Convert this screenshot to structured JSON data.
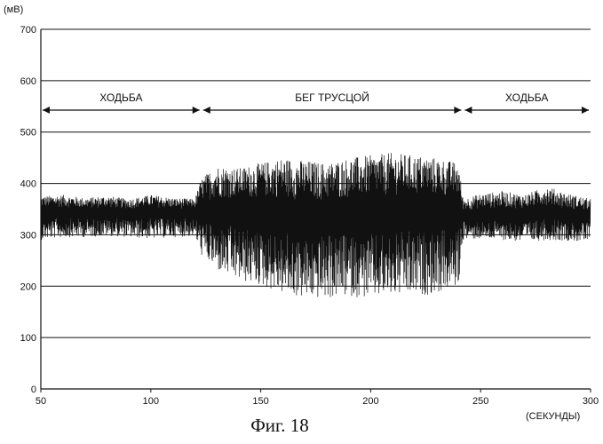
{
  "figure": {
    "caption": "Фиг. 18"
  },
  "chart_data": {
    "type": "line",
    "title": "",
    "ylabel": "(мВ)",
    "xlabel": "(СЕКУНДЫ)",
    "xlim": [
      50,
      300
    ],
    "ylim": [
      0,
      700
    ],
    "x_ticks": [
      50,
      100,
      150,
      200,
      250,
      300
    ],
    "y_ticks": [
      0,
      100,
      200,
      300,
      400,
      500,
      600,
      700
    ],
    "grid": true,
    "legend": "none",
    "series_color": "#111111",
    "phases": [
      {
        "label": "ХОДЬБА",
        "start": 50,
        "end": 123
      },
      {
        "label": "БЕГ ТРУСЦОЙ",
        "start": 123,
        "end": 242
      },
      {
        "label": "ХОДЬБА",
        "start": 242,
        "end": 300
      }
    ],
    "series": [
      {
        "x": [
          50,
          60,
          70,
          80,
          90,
          100,
          110,
          120,
          123,
          130,
          140,
          150,
          160,
          170,
          180,
          190,
          200,
          210,
          220,
          230,
          240,
          242,
          250,
          260,
          270,
          280,
          290,
          300
        ],
        "upper": [
          375,
          378,
          372,
          376,
          370,
          378,
          372,
          370,
          410,
          435,
          430,
          440,
          450,
          445,
          440,
          450,
          455,
          460,
          455,
          450,
          440,
          370,
          380,
          385,
          378,
          395,
          380,
          370
        ],
        "lower": [
          290,
          295,
          295,
          298,
          295,
          292,
          295,
          298,
          260,
          230,
          210,
          200,
          185,
          175,
          175,
          180,
          175,
          180,
          180,
          185,
          200,
          290,
          292,
          290,
          285,
          290,
          288,
          285
        ],
        "mean": [
          345,
          346,
          344,
          345,
          344,
          346,
          344,
          345,
          350,
          350,
          350,
          350,
          345,
          340,
          340,
          345,
          345,
          350,
          350,
          350,
          350,
          340,
          340,
          342,
          342,
          345,
          340,
          338
        ]
      }
    ]
  }
}
